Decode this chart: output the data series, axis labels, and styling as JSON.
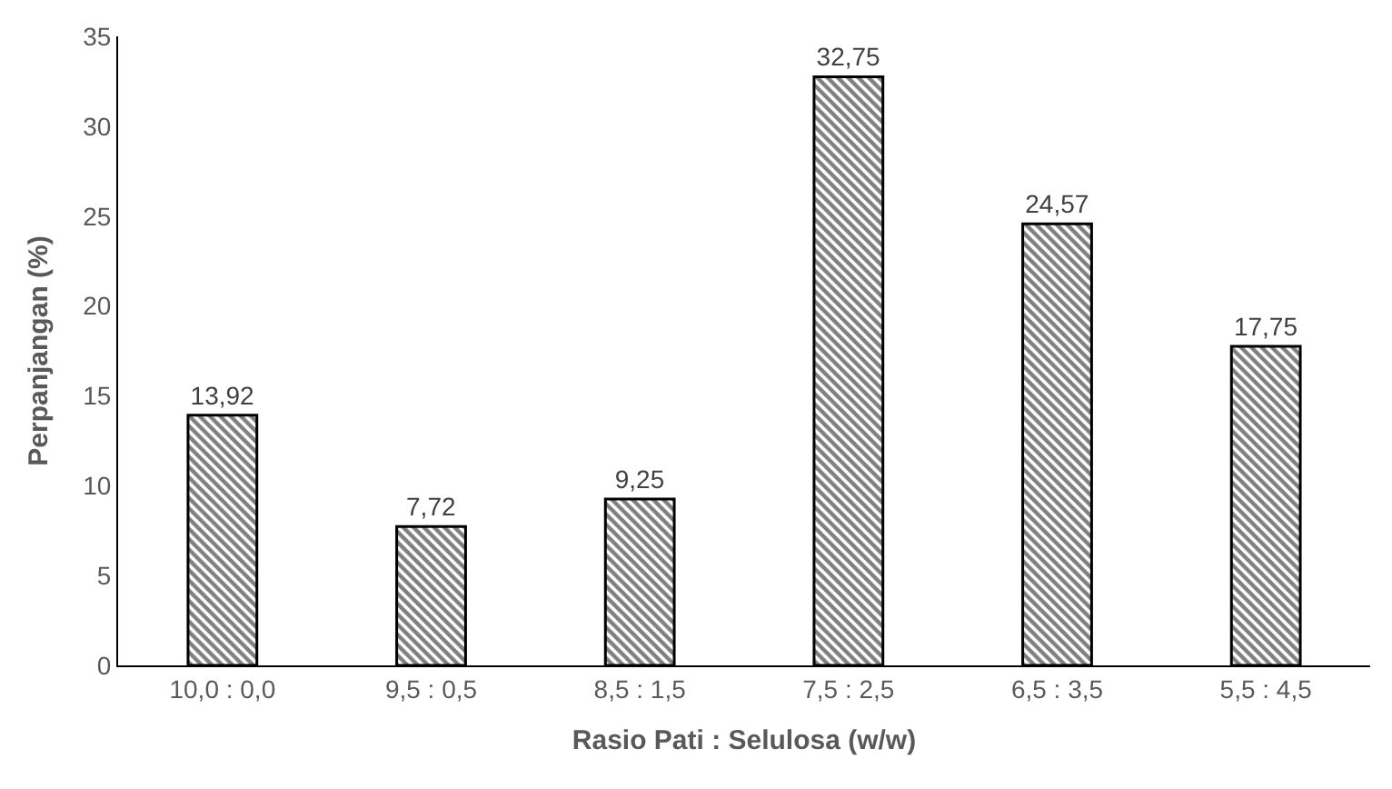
{
  "chart_data": {
    "type": "bar",
    "xlabel": "Rasio Pati : Selulosa (w/w)",
    "ylabel": "Perpanjangan (%)",
    "categories": [
      "10,0 : 0,0",
      "9,5 : 0,5",
      "8,5 : 1,5",
      "7,5 : 2,5",
      "6,5 : 3,5",
      "5,5 : 4,5"
    ],
    "values": [
      13.92,
      7.72,
      9.25,
      32.75,
      24.57,
      17.75
    ],
    "value_labels": [
      "13,92",
      "7,72",
      "9,25",
      "32,75",
      "24,57",
      "17,75"
    ],
    "color": "#000000",
    "ylim": [
      0,
      35
    ],
    "yticks": [
      0,
      5,
      10,
      15,
      20,
      25,
      30,
      35
    ]
  }
}
